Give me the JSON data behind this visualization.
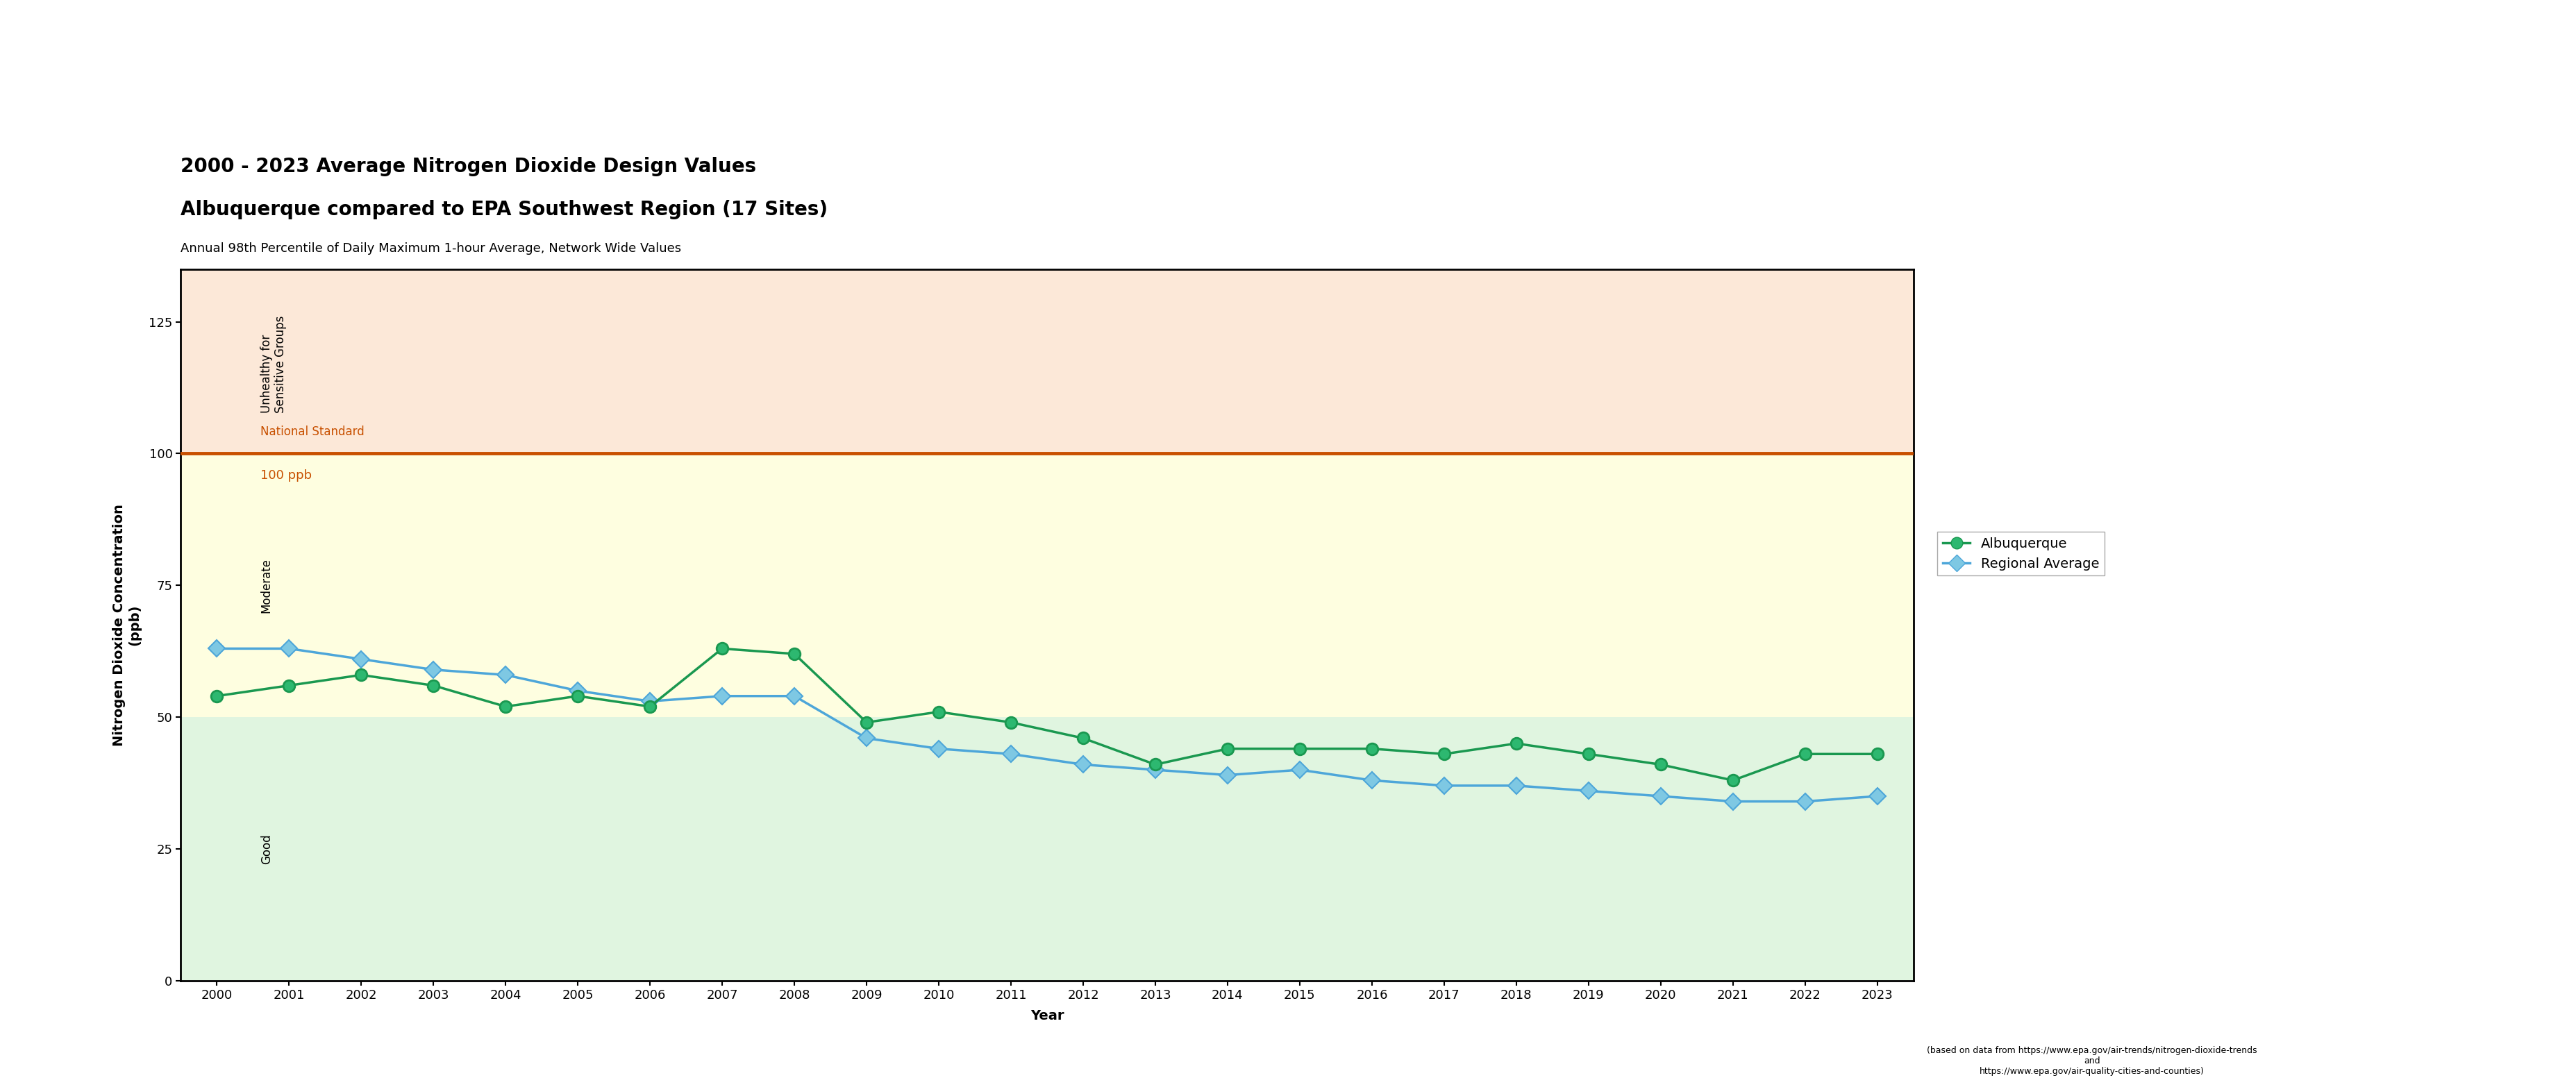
{
  "title_line1": "2000 - 2023 Average Nitrogen Dioxide Design Values",
  "title_line2": "Albuquerque compared to EPA Southwest Region (17 Sites)",
  "subtitle": "Annual 98th Percentile of Daily Maximum 1-hour Average, Network Wide Values",
  "xlabel": "Year",
  "ylabel": "Nitrogen Dioxide Concentration\n(ppb)",
  "footnote": "(based on data from https://www.epa.gov/air-trends/nitrogen-dioxide-trends\nand\nhttps://www.epa.gov/air-quality-cities-and-counties)",
  "years": [
    2000,
    2001,
    2002,
    2003,
    2004,
    2005,
    2006,
    2007,
    2008,
    2009,
    2010,
    2011,
    2012,
    2013,
    2014,
    2015,
    2016,
    2017,
    2018,
    2019,
    2020,
    2021,
    2022,
    2023
  ],
  "albuquerque": [
    54,
    56,
    58,
    56,
    52,
    54,
    52,
    63,
    62,
    49,
    51,
    49,
    46,
    41,
    44,
    44,
    44,
    43,
    45,
    43,
    41,
    38,
    43,
    43
  ],
  "regional_avg": [
    63,
    63,
    61,
    59,
    58,
    55,
    53,
    54,
    54,
    46,
    44,
    43,
    41,
    40,
    39,
    40,
    38,
    37,
    37,
    36,
    35,
    34,
    34,
    35
  ],
  "national_standard": 100,
  "ylim": [
    0,
    135
  ],
  "yticks": [
    0,
    25,
    50,
    75,
    100,
    125
  ],
  "color_albuquerque": "#1a9850",
  "color_albuquerque_marker": "#2db870",
  "color_regional_line": "#4da6d9",
  "color_regional_marker": "#7ec8e3",
  "color_national_std_line": "#c85000",
  "color_national_std_text": "#c85000",
  "color_100ppb_text": "#c85000",
  "bg_unhealthy": "#fce8d8",
  "bg_moderate": "#fefee0",
  "bg_good": "#e0f5e0",
  "zone_good_max": 50,
  "zone_moderate_max": 100,
  "zone_unhealthy_max": 135,
  "label_unhealthy": "Unhealthy for\nSensitive Groups",
  "label_moderate": "Moderate",
  "label_good": "Good",
  "legend_albuquerque": "Albuquerque",
  "legend_regional": "Regional Average",
  "title_fontsize": 20,
  "subtitle_fontsize": 13,
  "axis_label_fontsize": 14,
  "tick_fontsize": 13,
  "annotation_fontsize": 12,
  "legend_fontsize": 14
}
